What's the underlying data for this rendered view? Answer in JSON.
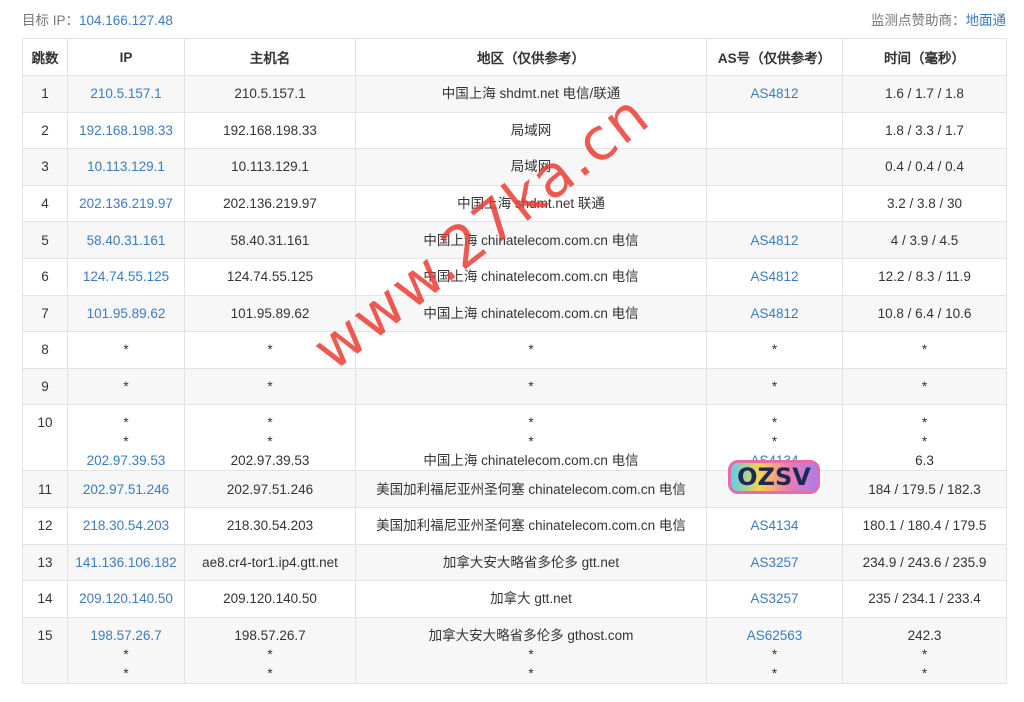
{
  "header": {
    "target_label": "目标 IP：",
    "target_ip": "104.166.127.48",
    "sponsor_label": "监测点赞助商：",
    "sponsor_name": "地面通"
  },
  "table": {
    "columns": [
      "跳数",
      "IP",
      "主机名",
      "地区（仅供参考）",
      "AS号（仅供参考）",
      "时间（毫秒）"
    ],
    "rows": [
      {
        "hop": "1",
        "ip": [
          "210.5.157.1"
        ],
        "host": [
          "210.5.157.1"
        ],
        "region": [
          "中国上海 shdmt.net 电信/联通"
        ],
        "as": [
          "AS4812"
        ],
        "time": [
          "1.6 / 1.7 / 1.8"
        ]
      },
      {
        "hop": "2",
        "ip": [
          "192.168.198.33"
        ],
        "host": [
          "192.168.198.33"
        ],
        "region": [
          "局域网"
        ],
        "as": [
          ""
        ],
        "time": [
          "1.8 / 3.3 / 1.7"
        ]
      },
      {
        "hop": "3",
        "ip": [
          "10.113.129.1"
        ],
        "host": [
          "10.113.129.1"
        ],
        "region": [
          "局域网"
        ],
        "as": [
          ""
        ],
        "time": [
          "0.4 / 0.4 / 0.4"
        ]
      },
      {
        "hop": "4",
        "ip": [
          "202.136.219.97"
        ],
        "host": [
          "202.136.219.97"
        ],
        "region": [
          "中国上海 shdmt.net 联通"
        ],
        "as": [
          ""
        ],
        "time": [
          "3.2 / 3.8 / 30"
        ]
      },
      {
        "hop": "5",
        "ip": [
          "58.40.31.161"
        ],
        "host": [
          "58.40.31.161"
        ],
        "region": [
          "中国上海 chinatelecom.com.cn 电信"
        ],
        "as": [
          "AS4812"
        ],
        "time": [
          "4 / 3.9 / 4.5"
        ]
      },
      {
        "hop": "6",
        "ip": [
          "124.74.55.125"
        ],
        "host": [
          "124.74.55.125"
        ],
        "region": [
          "中国上海 chinatelecom.com.cn 电信"
        ],
        "as": [
          "AS4812"
        ],
        "time": [
          "12.2 / 8.3 / 11.9"
        ]
      },
      {
        "hop": "7",
        "ip": [
          "101.95.89.62"
        ],
        "host": [
          "101.95.89.62"
        ],
        "region": [
          "中国上海 chinatelecom.com.cn 电信"
        ],
        "as": [
          "AS4812"
        ],
        "time": [
          "10.8 / 6.4 / 10.6"
        ]
      },
      {
        "hop": "8",
        "ip": [
          "*"
        ],
        "host": [
          "*"
        ],
        "region": [
          "*"
        ],
        "as": [
          "*"
        ],
        "time": [
          "*"
        ]
      },
      {
        "hop": "9",
        "ip": [
          "*"
        ],
        "host": [
          "*"
        ],
        "region": [
          "*"
        ],
        "as": [
          "*"
        ],
        "time": [
          "*"
        ]
      },
      {
        "hop": "10",
        "ip": [
          "*",
          "*",
          "202.97.39.53"
        ],
        "host": [
          "*",
          "*",
          "202.97.39.53"
        ],
        "region": [
          "*",
          "*",
          "中国上海 chinatelecom.com.cn 电信"
        ],
        "as": [
          "*",
          "*",
          "AS4134"
        ],
        "time": [
          "*",
          "*",
          "6.3"
        ]
      },
      {
        "hop": "11",
        "ip": [
          "202.97.51.246"
        ],
        "host": [
          "202.97.51.246"
        ],
        "region": [
          "美国加利福尼亚州圣何塞 chinatelecom.com.cn 电信"
        ],
        "as": [
          "AS4134"
        ],
        "time": [
          "184 / 179.5 / 182.3"
        ]
      },
      {
        "hop": "12",
        "ip": [
          "218.30.54.203"
        ],
        "host": [
          "218.30.54.203"
        ],
        "region": [
          "美国加利福尼亚州圣何塞 chinatelecom.com.cn 电信"
        ],
        "as": [
          "AS4134"
        ],
        "time": [
          "180.1 / 180.4 / 179.5"
        ]
      },
      {
        "hop": "13",
        "ip": [
          "141.136.106.182"
        ],
        "host": [
          "ae8.cr4-tor1.ip4.gtt.net"
        ],
        "region": [
          "加拿大安大略省多伦多 gtt.net"
        ],
        "as": [
          "AS3257"
        ],
        "time": [
          "234.9 / 243.6 / 235.9"
        ]
      },
      {
        "hop": "14",
        "ip": [
          "209.120.140.50"
        ],
        "host": [
          "209.120.140.50"
        ],
        "region": [
          "加拿大 gtt.net"
        ],
        "as": [
          "AS3257"
        ],
        "time": [
          "235 / 234.1 / 233.4"
        ]
      },
      {
        "hop": "15",
        "ip": [
          "198.57.26.7",
          "*",
          "*"
        ],
        "host": [
          "198.57.26.7",
          "*",
          "*"
        ],
        "region": [
          "加拿大安大略省多伦多 gthost.com",
          "*",
          "*"
        ],
        "as": [
          "AS62563",
          "*",
          "*"
        ],
        "time": [
          "242.3",
          "*",
          "*"
        ]
      }
    ]
  },
  "watermark": {
    "text": "www.27ka.cn",
    "sticker": "OZSV"
  }
}
